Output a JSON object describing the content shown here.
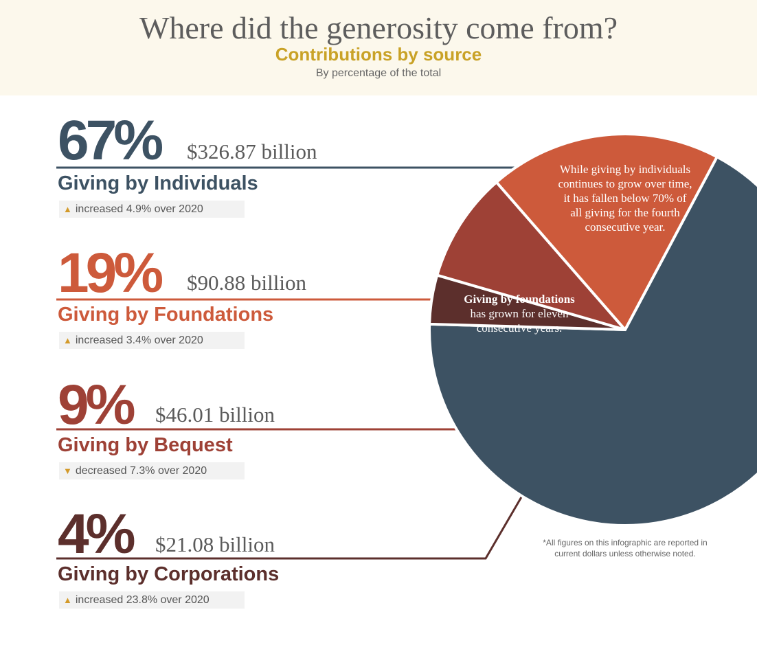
{
  "header": {
    "title": "Where did the generosity come from?",
    "subtitle": "Contributions by source",
    "subsubtitle": "By percentage of the total"
  },
  "colors": {
    "individuals": "#3d5263",
    "foundations": "#cd5a3b",
    "bequest": "#9e4136",
    "corporations": "#5c2f2c",
    "arrow": "#d39a2a"
  },
  "sources": [
    {
      "pct_label": "67%",
      "amount": "$326.87 billion",
      "name": "Giving by Individuals",
      "change_dir": "up",
      "change": "increased 4.9% over 2020"
    },
    {
      "pct_label": "19%",
      "amount": "$90.88 billion",
      "name": "Giving by Foundations",
      "change_dir": "up",
      "change": "increased 3.4% over 2020"
    },
    {
      "pct_label": "9%",
      "amount": "$46.01 billion",
      "name": "Giving by Bequest",
      "change_dir": "down",
      "change": "decreased 7.3% over 2020"
    },
    {
      "pct_label": "4%",
      "amount": "$21.08 billion",
      "name": "Giving by Corporations",
      "change_dir": "up",
      "change": "increased 23.8% over 2020"
    }
  ],
  "annotations": {
    "individuals": "While giving by individuals continues to grow over time, it has fallen below 70% of all giving for the fourth consecutive year.",
    "foundations_bold": "Giving by foundations",
    "foundations_rest": "has grown for eleven consecutive years."
  },
  "footnote": "*All figures on this infographic are reported in current dollars unless otherwise noted.",
  "chart_data": {
    "type": "pie",
    "title": "Contributions by source",
    "categories": [
      "Individuals",
      "Foundations",
      "Bequest",
      "Corporations"
    ],
    "values": [
      67,
      19,
      9,
      4
    ],
    "amounts_billion": [
      326.87,
      90.88,
      46.01,
      21.08
    ],
    "units": "percent of total"
  }
}
